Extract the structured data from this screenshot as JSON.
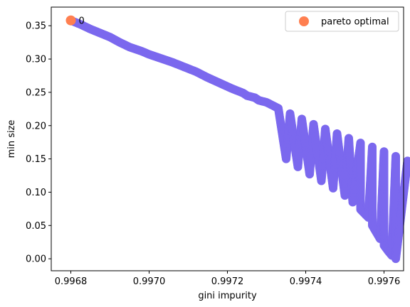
{
  "chart_data": {
    "type": "scatter",
    "xlabel": "gini impurity",
    "ylabel": "min size",
    "xlim": [
      0.99675,
      0.99765
    ],
    "ylim": [
      -0.018,
      0.378
    ],
    "x_ticks": [
      0.9968,
      0.997,
      0.9972,
      0.9974,
      0.9976
    ],
    "x_tick_labels": [
      "0.9968",
      "0.9970",
      "0.9972",
      "0.9974",
      "0.9976"
    ],
    "y_ticks": [
      0.0,
      0.05,
      0.1,
      0.15,
      0.2,
      0.25,
      0.3,
      0.35
    ],
    "y_tick_labels": [
      "0.00",
      "0.05",
      "0.10",
      "0.15",
      "0.20",
      "0.25",
      "0.30",
      "0.35"
    ],
    "grid": false,
    "legend_position": "top-right",
    "series": [
      {
        "name": "",
        "color": "#7b68ee",
        "points": [
          [
            0.9968,
            0.358
          ],
          [
            0.996825,
            0.352
          ],
          [
            0.99685,
            0.345
          ],
          [
            0.996875,
            0.339
          ],
          [
            0.9969,
            0.333
          ],
          [
            0.996925,
            0.325
          ],
          [
            0.99695,
            0.318
          ],
          [
            0.99698,
            0.312
          ],
          [
            0.997,
            0.307
          ],
          [
            0.99703,
            0.301
          ],
          [
            0.99706,
            0.295
          ],
          [
            0.99709,
            0.288
          ],
          [
            0.99712,
            0.281
          ],
          [
            0.99715,
            0.272
          ],
          [
            0.99718,
            0.264
          ],
          [
            0.99721,
            0.256
          ],
          [
            0.99724,
            0.249
          ],
          [
            0.99727,
            0.242
          ],
          [
            0.9973,
            0.235
          ],
          [
            0.99733,
            0.226
          ],
          [
            0.99736,
            0.218
          ],
          [
            0.99739,
            0.21
          ],
          [
            0.99742,
            0.202
          ],
          [
            0.99745,
            0.195
          ],
          [
            0.99748,
            0.188
          ],
          [
            0.99751,
            0.181
          ],
          [
            0.99754,
            0.174
          ],
          [
            0.99757,
            0.168
          ],
          [
            0.9976,
            0.161
          ],
          [
            0.99763,
            0.154
          ],
          [
            0.99766,
            0.147
          ],
          [
            0.99769,
            0.14
          ],
          [
            0.99772,
            0.132
          ],
          [
            0.99725,
            0.245
          ],
          [
            0.99728,
            0.238
          ],
          [
            0.99735,
            0.15
          ],
          [
            0.99738,
            0.138
          ],
          [
            0.99741,
            0.127
          ],
          [
            0.99744,
            0.117
          ],
          [
            0.99747,
            0.106
          ],
          [
            0.9975,
            0.095
          ],
          [
            0.99752,
            0.085
          ],
          [
            0.99754,
            0.074
          ],
          [
            0.99756,
            0.062
          ],
          [
            0.99757,
            0.05
          ],
          [
            0.99758,
            0.04
          ],
          [
            0.99759,
            0.03
          ],
          [
            0.9976,
            0.02
          ],
          [
            0.99761,
            0.012
          ],
          [
            0.99762,
            0.005
          ],
          [
            0.99763,
            0.0
          ]
        ]
      },
      {
        "name": "pareto optimal",
        "color": "#ff7f50",
        "points": [
          [
            0.9968,
            0.358
          ]
        ]
      }
    ],
    "annotations": [
      {
        "text": "0",
        "x": 0.9968,
        "y": 0.358
      }
    ]
  }
}
